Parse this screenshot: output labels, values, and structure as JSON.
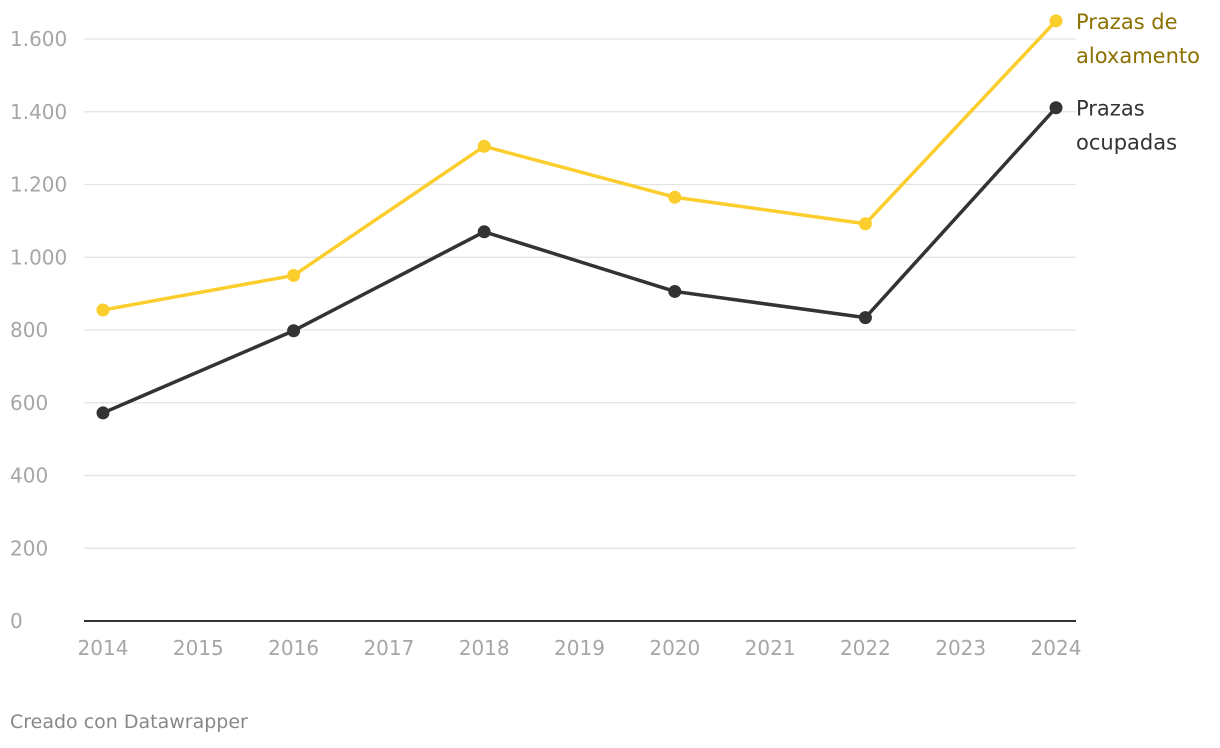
{
  "chart_data": {
    "type": "line",
    "x": [
      2014,
      2016,
      2018,
      2020,
      2022,
      2024
    ],
    "x_ticks": [
      "2014",
      "2015",
      "2016",
      "2017",
      "2018",
      "2019",
      "2020",
      "2021",
      "2022",
      "2023",
      "2024"
    ],
    "xlim": [
      2014,
      2024
    ],
    "ylim": [
      0,
      1600
    ],
    "y_ticks": [
      0,
      200,
      400,
      600,
      800,
      1000,
      1200,
      1400,
      1600
    ],
    "y_tick_labels": [
      "0",
      "200",
      "400",
      "600",
      "800",
      "1.000",
      "1.200",
      "1.400",
      "1.600"
    ],
    "grid": "horizontal",
    "legend": "direct labels at line ends, right",
    "series": [
      {
        "name_lines": [
          "Prazas de",
          "aloxamento"
        ],
        "values": [
          855,
          950,
          1305,
          1165,
          1092,
          1650
        ],
        "color": "#fbcd2d",
        "label_color": "#8c7000"
      },
      {
        "name_lines": [
          "Prazas",
          "ocupadas"
        ],
        "values": [
          572,
          798,
          1070,
          906,
          834,
          1411
        ],
        "color": "#333333",
        "label_color": "#333333"
      }
    ]
  },
  "footer": {
    "credit": "Creado con Datawrapper"
  }
}
